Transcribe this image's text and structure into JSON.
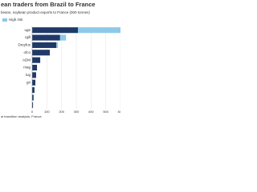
{
  "chart_data": {
    "type": "bar",
    "orientation": "horizontal",
    "stacked": true,
    "title": "ean traders from Brazil to France",
    "subtitle": "beans, soybean product exports to France (000 tonnes)",
    "source": "al transition analysis, France",
    "categories": [
      "uge",
      "rgill",
      "Dreyfus",
      "ofco",
      "ADM",
      "mag",
      "lug",
      "gri",
      null,
      null,
      null
    ],
    "series": [
      {
        "color": "#1f3a68",
        "values": [
          311,
          190,
          165,
          120,
          55,
          33,
          27,
          22,
          16,
          10,
          6
        ]
      },
      {
        "name": "High risk",
        "color": "#8ec9e8",
        "values": [
          300,
          40,
          10,
          0,
          0,
          0,
          0,
          0,
          0,
          0,
          0
        ]
      }
    ],
    "xlim": [
      0,
      600
    ],
    "xticks": [
      0,
      100,
      200,
      300,
      400,
      500,
      600
    ],
    "grid": true
  }
}
